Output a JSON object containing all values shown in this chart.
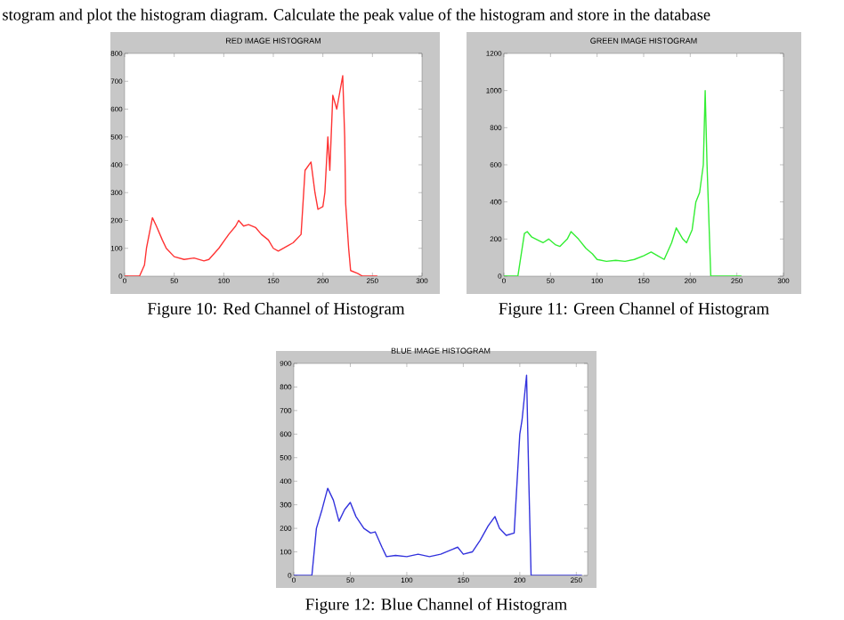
{
  "chart_data": [
    {
      "type": "line",
      "title": "RED IMAGE HISTOGRAM",
      "xlim": [
        0,
        300
      ],
      "ylim": [
        0,
        800
      ],
      "xticks": [
        0,
        50,
        100,
        150,
        200,
        250,
        300
      ],
      "yticks": [
        0,
        100,
        200,
        300,
        400,
        500,
        600,
        700,
        800
      ],
      "annotations": [
        "stogram and plot the histogram diagram. Calculate the peak value of the histogram and store in the database",
        "Figure 10: Red Channel of Histogram"
      ],
      "x": [
        0,
        15,
        20,
        22,
        28,
        32,
        38,
        42,
        50,
        60,
        70,
        80,
        85,
        95,
        105,
        112,
        115,
        120,
        125,
        132,
        138,
        145,
        150,
        155,
        165,
        170,
        178,
        182,
        188,
        192,
        195,
        200,
        202,
        205,
        207,
        210,
        214,
        220,
        222,
        223,
        226,
        228,
        235,
        240,
        255
      ],
      "series": [
        {
          "color": "#ff3333",
          "values": [
            0,
            0,
            40,
            100,
            210,
            180,
            130,
            100,
            70,
            60,
            65,
            55,
            60,
            100,
            150,
            180,
            200,
            180,
            185,
            175,
            150,
            130,
            100,
            90,
            110,
            120,
            150,
            380,
            410,
            300,
            240,
            250,
            300,
            500,
            380,
            650,
            600,
            720,
            500,
            260,
            100,
            20,
            10,
            0,
            0
          ]
        }
      ]
    },
    {
      "type": "line",
      "title": "GREEN IMAGE HISTOGRAM",
      "xlim": [
        0,
        300
      ],
      "ylim": [
        0,
        1200
      ],
      "xticks": [
        0,
        50,
        100,
        150,
        200,
        250,
        300
      ],
      "yticks": [
        0,
        200,
        400,
        600,
        800,
        1000,
        1200
      ],
      "annotations": [
        "Figure 11: Green Channel of Histogram"
      ],
      "x": [
        0,
        15,
        22,
        25,
        30,
        38,
        42,
        48,
        55,
        60,
        68,
        72,
        80,
        88,
        95,
        100,
        110,
        120,
        130,
        140,
        150,
        158,
        165,
        172,
        180,
        185,
        192,
        196,
        202,
        206,
        210,
        214,
        216,
        218,
        222,
        255
      ],
      "series": [
        {
          "color": "#33ee33",
          "values": [
            0,
            0,
            230,
            240,
            210,
            190,
            180,
            200,
            170,
            160,
            200,
            240,
            200,
            150,
            120,
            90,
            80,
            85,
            80,
            90,
            110,
            130,
            110,
            90,
            180,
            260,
            200,
            180,
            250,
            400,
            450,
            600,
            1000,
            600,
            0,
            0
          ]
        }
      ]
    },
    {
      "type": "line",
      "title": "BLUE IMAGE HISTOGRAM",
      "xlim": [
        0,
        260
      ],
      "ylim": [
        0,
        900
      ],
      "xticks": [
        0,
        50,
        100,
        150,
        200,
        250
      ],
      "yticks": [
        0,
        100,
        200,
        300,
        400,
        500,
        600,
        700,
        800,
        900
      ],
      "annotations": [
        "Figure 12: Blue Channel of Histogram"
      ],
      "x": [
        0,
        16,
        20,
        25,
        30,
        35,
        40,
        45,
        50,
        55,
        62,
        68,
        72,
        78,
        82,
        90,
        100,
        110,
        120,
        130,
        140,
        145,
        150,
        158,
        165,
        172,
        178,
        182,
        188,
        195,
        200,
        202,
        206,
        208,
        210,
        255
      ],
      "series": [
        {
          "color": "#3333dd",
          "values": [
            0,
            0,
            200,
            280,
            370,
            320,
            230,
            280,
            310,
            250,
            200,
            180,
            185,
            120,
            80,
            85,
            80,
            90,
            80,
            90,
            110,
            120,
            90,
            100,
            150,
            210,
            250,
            200,
            170,
            180,
            600,
            660,
            850,
            400,
            0,
            0
          ]
        }
      ]
    }
  ]
}
